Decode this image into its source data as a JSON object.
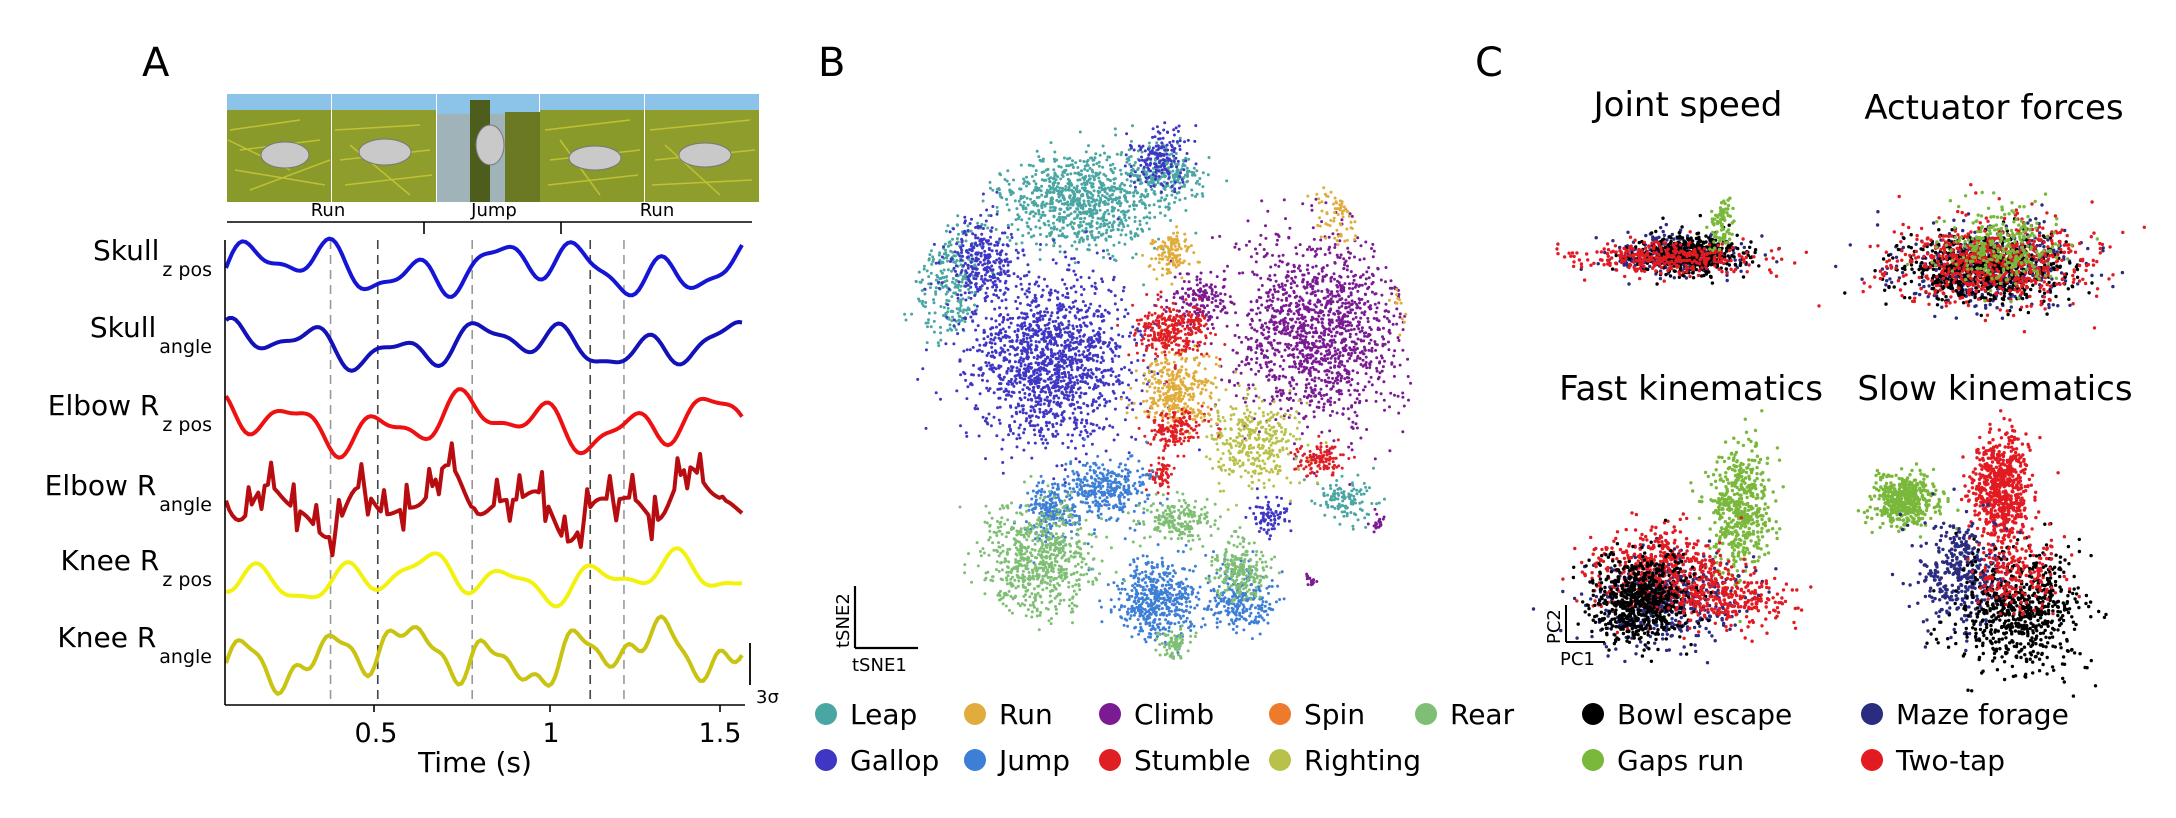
{
  "panels": {
    "a": {
      "letter": "A",
      "segments": [
        "Run",
        "Jump",
        "Run"
      ],
      "traces": [
        {
          "name": "Skull",
          "sub": "z pos",
          "color": "#1515d6"
        },
        {
          "name": "Skull",
          "sub": "angle",
          "color": "#1212b8"
        },
        {
          "name": "Elbow R",
          "sub": "z pos",
          "color": "#ee1111"
        },
        {
          "name": "Elbow R",
          "sub": "angle",
          "color": "#b80d10"
        },
        {
          "name": "Knee R",
          "sub": "z pos",
          "color": "#f2f20e"
        },
        {
          "name": "Knee R",
          "sub": "angle",
          "color": "#c8c411"
        }
      ],
      "scalebar_label": "3σ",
      "xlabel": "Time (s)",
      "xticks": [
        "0.5",
        "1",
        "1.5"
      ],
      "event_times_s": [
        0.33,
        0.47,
        0.75,
        1.1,
        1.2
      ]
    },
    "b": {
      "letter": "B",
      "axis1": "tSNE1",
      "axis2": "tSNE2",
      "legend": [
        {
          "label": "Leap",
          "color": "#4aa6a3"
        },
        {
          "label": "Run",
          "color": "#e0ad3c"
        },
        {
          "label": "Climb",
          "color": "#7b1b93"
        },
        {
          "label": "Spin",
          "color": "#ee7a2c"
        },
        {
          "label": "Rear",
          "color": "#7fbf75"
        },
        {
          "label": "Gallop",
          "color": "#3f37c3"
        },
        {
          "label": "Jump",
          "color": "#3e7fd6"
        },
        {
          "label": "Stumble",
          "color": "#e01f24"
        },
        {
          "label": "Righting",
          "color": "#b9c14a"
        }
      ]
    },
    "c": {
      "letter": "C",
      "subplots": [
        "Joint speed",
        "Actuator forces",
        "Fast kinematics",
        "Slow kinematics"
      ],
      "axis1": "PC1",
      "axis2": "PC2",
      "legend": [
        {
          "label": "Bowl escape",
          "color": "#000000"
        },
        {
          "label": "Maze forage",
          "color": "#2b2b80"
        },
        {
          "label": "Gaps run",
          "color": "#79b83a"
        },
        {
          "label": "Two-tap",
          "color": "#e21b22"
        }
      ]
    }
  }
}
